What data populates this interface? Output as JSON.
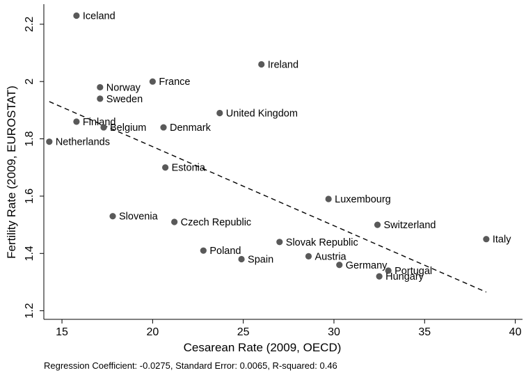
{
  "chart_data": {
    "type": "scatter",
    "title": "",
    "xlabel": "Cesarean Rate (2009, OECD)",
    "ylabel": "Fertility Rate (2009, EUROSTAT)",
    "xlim": [
      14,
      40.4
    ],
    "ylim": [
      1.17,
      2.27
    ],
    "xticks": [
      15,
      20,
      25,
      30,
      35,
      40
    ],
    "yticks": [
      1.2,
      1.4,
      1.6,
      1.8,
      2.0,
      2.2
    ],
    "xtick_labels": [
      "15",
      "20",
      "25",
      "30",
      "35",
      "40"
    ],
    "ytick_labels": [
      "1.2",
      "1.4",
      "1.6",
      "1.8",
      "2",
      "2.2"
    ],
    "grid": false,
    "legend": "none",
    "colors": {
      "marker": "#595959",
      "fit_line": "#000000"
    },
    "points": [
      {
        "label": "Iceland",
        "x": 15.8,
        "y": 2.23
      },
      {
        "label": "Ireland",
        "x": 26.0,
        "y": 2.06
      },
      {
        "label": "France",
        "x": 20.0,
        "y": 2.0
      },
      {
        "label": "Norway",
        "x": 17.1,
        "y": 1.98
      },
      {
        "label": "Sweden",
        "x": 17.1,
        "y": 1.94
      },
      {
        "label": "United Kingdom",
        "x": 23.7,
        "y": 1.89
      },
      {
        "label": "Finland",
        "x": 15.8,
        "y": 1.86
      },
      {
        "label": "Belgium",
        "x": 17.3,
        "y": 1.84
      },
      {
        "label": "Denmark",
        "x": 20.6,
        "y": 1.84
      },
      {
        "label": "Netherlands",
        "x": 14.3,
        "y": 1.79
      },
      {
        "label": "Estonia",
        "x": 20.7,
        "y": 1.7
      },
      {
        "label": "Luxembourg",
        "x": 29.7,
        "y": 1.59
      },
      {
        "label": "Slovenia",
        "x": 17.8,
        "y": 1.53
      },
      {
        "label": "Czech Republic",
        "x": 21.2,
        "y": 1.51
      },
      {
        "label": "Switzerland",
        "x": 32.4,
        "y": 1.5
      },
      {
        "label": "Italy",
        "x": 38.4,
        "y": 1.45
      },
      {
        "label": "Slovak Republic",
        "x": 27.0,
        "y": 1.44
      },
      {
        "label": "Poland",
        "x": 22.8,
        "y": 1.41
      },
      {
        "label": "Austria",
        "x": 28.6,
        "y": 1.39
      },
      {
        "label": "Spain",
        "x": 24.9,
        "y": 1.38
      },
      {
        "label": "Germany",
        "x": 30.3,
        "y": 1.36
      },
      {
        "label": "Portugal",
        "x": 33.0,
        "y": 1.34
      },
      {
        "label": "Hungary",
        "x": 32.5,
        "y": 1.32
      }
    ],
    "fit_line": {
      "style": "dashed",
      "x": [
        14.3,
        38.4
      ],
      "y": [
        1.93,
        1.265
      ]
    },
    "note": "Regression Coefficient: -0.0275, Standard Error: 0.0065, R-squared: 0.46"
  }
}
